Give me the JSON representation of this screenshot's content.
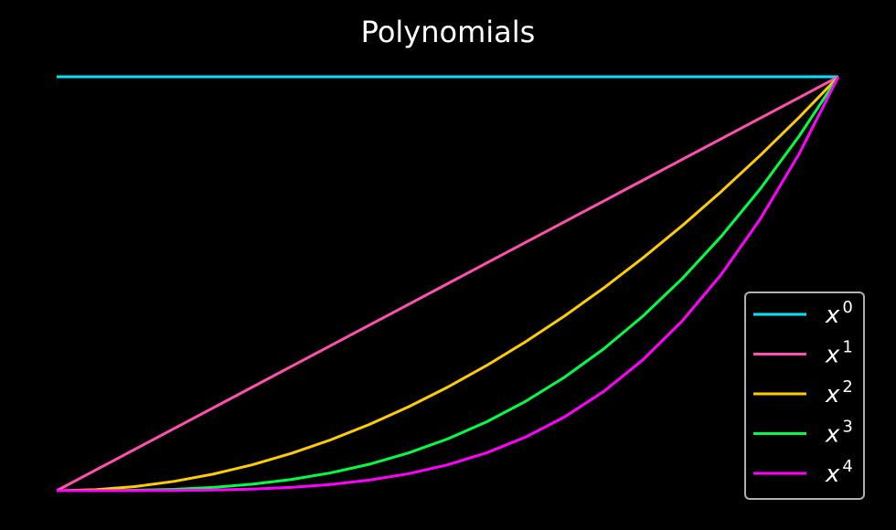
{
  "chart_data": {
    "type": "line",
    "title": "Polynomials",
    "xlabel": "",
    "ylabel": "",
    "xlim": [
      0,
      1
    ],
    "ylim": [
      0,
      1
    ],
    "grid": false,
    "axes_visible": false,
    "legend_placement": "lower-right",
    "background": "#000000",
    "x": [
      0,
      0.05,
      0.1,
      0.15,
      0.2,
      0.25,
      0.3,
      0.35,
      0.4,
      0.45,
      0.5,
      0.55,
      0.6,
      0.65,
      0.7,
      0.75,
      0.8,
      0.85,
      0.9,
      0.95,
      1.0
    ],
    "series": [
      {
        "legend_base": "x",
        "legend_exp": "0",
        "color": "#00e5ff",
        "values": [
          1,
          1,
          1,
          1,
          1,
          1,
          1,
          1,
          1,
          1,
          1,
          1,
          1,
          1,
          1,
          1,
          1,
          1,
          1,
          1,
          1
        ]
      },
      {
        "legend_base": "x",
        "legend_exp": "1",
        "color": "#ff4fb0",
        "values": [
          0,
          0.05,
          0.1,
          0.15,
          0.2,
          0.25,
          0.3,
          0.35,
          0.4,
          0.45,
          0.5,
          0.55,
          0.6,
          0.65,
          0.7,
          0.75,
          0.8,
          0.85,
          0.9,
          0.95,
          1.0
        ]
      },
      {
        "legend_base": "x",
        "legend_exp": "2",
        "color": "#ffcc00",
        "values": [
          0,
          0.0025,
          0.01,
          0.0225,
          0.04,
          0.0625,
          0.09,
          0.1225,
          0.16,
          0.2025,
          0.25,
          0.3025,
          0.36,
          0.4225,
          0.49,
          0.5625,
          0.64,
          0.7225,
          0.81,
          0.9025,
          1.0
        ]
      },
      {
        "legend_base": "x",
        "legend_exp": "3",
        "color": "#00ff44",
        "values": [
          0,
          0.000125,
          0.001,
          0.003375,
          0.008,
          0.015625,
          0.027,
          0.042875,
          0.064,
          0.091125,
          0.125,
          0.166375,
          0.216,
          0.274625,
          0.343,
          0.421875,
          0.512,
          0.614125,
          0.729,
          0.857375,
          1.0
        ]
      },
      {
        "legend_base": "x",
        "legend_exp": "4",
        "color": "#ff00ff",
        "values": [
          0,
          6.25e-06,
          0.0001,
          0.00050625,
          0.0016,
          0.00390625,
          0.0081,
          0.01500625,
          0.0256,
          0.04100625,
          0.0625,
          0.09150625,
          0.1296,
          0.17850625,
          0.2401,
          0.31640625,
          0.4096,
          0.52200625,
          0.6561,
          0.81450625,
          1.0
        ]
      }
    ]
  }
}
